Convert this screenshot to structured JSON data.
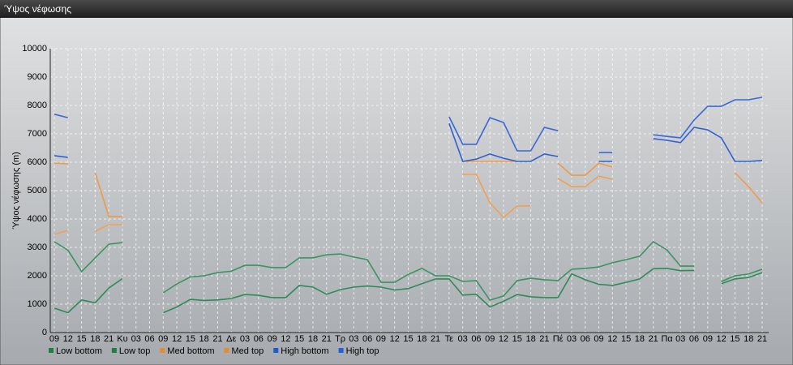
{
  "chart_data": {
    "type": "line",
    "title": "Ύψος νέφωσης",
    "y_label": "Ύψος νέφωσης (m)",
    "categories": [
      "09",
      "12",
      "15",
      "18",
      "21",
      "Κυ",
      "03",
      "06",
      "09",
      "12",
      "15",
      "18",
      "21",
      "Δε",
      "03",
      "06",
      "09",
      "12",
      "15",
      "18",
      "21",
      "Τρ",
      "03",
      "06",
      "09",
      "12",
      "15",
      "18",
      "21",
      "Τε",
      "03",
      "06",
      "09",
      "12",
      "15",
      "18",
      "21",
      "Πέ",
      "03",
      "06",
      "09",
      "12",
      "15",
      "18",
      "21",
      "Πα",
      "03",
      "06",
      "09",
      "12",
      "15",
      "18",
      "21"
    ],
    "ylim": [
      0,
      10000
    ],
    "yticks": [
      0,
      1000,
      2000,
      3000,
      4000,
      5000,
      6000,
      7000,
      8000,
      9000,
      10000
    ],
    "grid": true,
    "series": [
      {
        "name": "Low bottom",
        "color": "#2e8b57",
        "legend_color": "#1e8040",
        "values": [
          860,
          700,
          1150,
          1050,
          1570,
          1900,
          null,
          null,
          700,
          900,
          1170,
          1130,
          1150,
          1200,
          1340,
          1310,
          1230,
          1230,
          1660,
          1600,
          1350,
          1510,
          1600,
          1640,
          1600,
          1500,
          1550,
          1720,
          1890,
          1890,
          1320,
          1350,
          900,
          1100,
          1340,
          1260,
          1230,
          1230,
          2070,
          1860,
          1700,
          1660,
          1770,
          1890,
          2250,
          2260,
          2180,
          2190,
          null,
          1720,
          1890,
          1940,
          2110
        ]
      },
      {
        "name": "Low top",
        "color": "#3a9462",
        "legend_color": "#1e8040",
        "values": [
          3200,
          2900,
          2150,
          2630,
          3110,
          3170,
          null,
          null,
          1400,
          1710,
          1960,
          2000,
          2110,
          2160,
          2370,
          2370,
          2290,
          2290,
          2630,
          2630,
          2740,
          2770,
          2660,
          2570,
          1770,
          1770,
          2050,
          2260,
          2000,
          2000,
          1800,
          1830,
          1140,
          1290,
          1830,
          1910,
          1860,
          1830,
          2230,
          2260,
          2310,
          2460,
          2570,
          2690,
          3200,
          2910,
          2340,
          2340,
          null,
          1800,
          2000,
          2060,
          2230
        ]
      },
      {
        "name": "Med bottom",
        "color": "#f0a050",
        "legend_color": "#e88a30",
        "values": [
          3460,
          3600,
          null,
          3570,
          3800,
          3800,
          null,
          null,
          null,
          null,
          null,
          null,
          null,
          null,
          null,
          null,
          null,
          null,
          null,
          null,
          null,
          null,
          null,
          null,
          null,
          null,
          null,
          null,
          null,
          null,
          5570,
          5570,
          4570,
          4060,
          4460,
          4460,
          null,
          5430,
          5140,
          5140,
          5510,
          5400,
          null,
          null,
          null,
          null,
          null,
          null,
          null,
          null,
          null,
          null,
          null
        ]
      },
      {
        "name": "Med top",
        "color": "#f09a48",
        "legend_color": "#e88a30",
        "values": [
          5970,
          5940,
          null,
          5630,
          4090,
          4090,
          null,
          null,
          null,
          null,
          null,
          null,
          null,
          null,
          null,
          null,
          null,
          null,
          null,
          null,
          null,
          null,
          null,
          null,
          null,
          null,
          null,
          null,
          null,
          null,
          6030,
          6030,
          6030,
          6030,
          6030,
          null,
          null,
          5970,
          5540,
          5540,
          5970,
          5830,
          null,
          null,
          null,
          null,
          null,
          null,
          null,
          null,
          5630,
          5140,
          4570
        ]
      },
      {
        "name": "High bottom",
        "color": "#3060d0",
        "legend_color": "#1a5ad0",
        "values": [
          6230,
          6170,
          null,
          null,
          null,
          null,
          null,
          null,
          null,
          null,
          null,
          null,
          null,
          null,
          null,
          null,
          null,
          null,
          null,
          null,
          null,
          null,
          null,
          null,
          null,
          null,
          null,
          null,
          null,
          7370,
          6030,
          6110,
          6290,
          6140,
          6030,
          6030,
          6290,
          6200,
          null,
          null,
          6030,
          6030,
          null,
          null,
          6830,
          6770,
          6690,
          7230,
          7140,
          6860,
          6030,
          6030,
          6060
        ]
      },
      {
        "name": "High top",
        "color": "#3a68d8",
        "legend_color": "#2060e0",
        "values": [
          7690,
          7570,
          null,
          null,
          null,
          null,
          null,
          null,
          null,
          null,
          null,
          null,
          null,
          null,
          null,
          null,
          null,
          null,
          null,
          null,
          null,
          null,
          null,
          null,
          null,
          null,
          null,
          null,
          null,
          7600,
          6630,
          6630,
          7570,
          7400,
          6400,
          6400,
          7230,
          7110,
          null,
          null,
          6340,
          6340,
          null,
          null,
          6970,
          6910,
          6860,
          7490,
          7970,
          7970,
          8200,
          8200,
          8290
        ]
      }
    ]
  }
}
